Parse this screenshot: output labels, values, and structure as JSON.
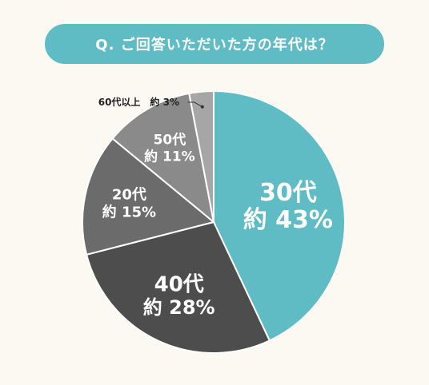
{
  "title": "Q. ご回答いただいた方の年代は？",
  "chart_data": {
    "type": "pie",
    "title": "Q. ご回答いただいた方の年代は？",
    "start_angle_deg": 0,
    "direction": "clockwise",
    "slices": [
      {
        "category": "30代",
        "value": 43,
        "value_label": "約 43%",
        "color": "#5fbcc4",
        "text_color": "#ffffff"
      },
      {
        "category": "40代",
        "value": 28,
        "value_label": "約 28%",
        "color": "#4d4d4d",
        "text_color": "#ffffff"
      },
      {
        "category": "20代",
        "value": 15,
        "value_label": "約 15%",
        "color": "#6b6b6b",
        "text_color": "#ffffff"
      },
      {
        "category": "50代",
        "value": 11,
        "value_label": "約 11%",
        "color": "#8a8a8a",
        "text_color": "#ffffff"
      },
      {
        "category": "60代以上",
        "value": 3,
        "value_label": "約 3%",
        "color": "#a6a6a6",
        "text_color": "#222222",
        "label_outside": true
      }
    ]
  }
}
